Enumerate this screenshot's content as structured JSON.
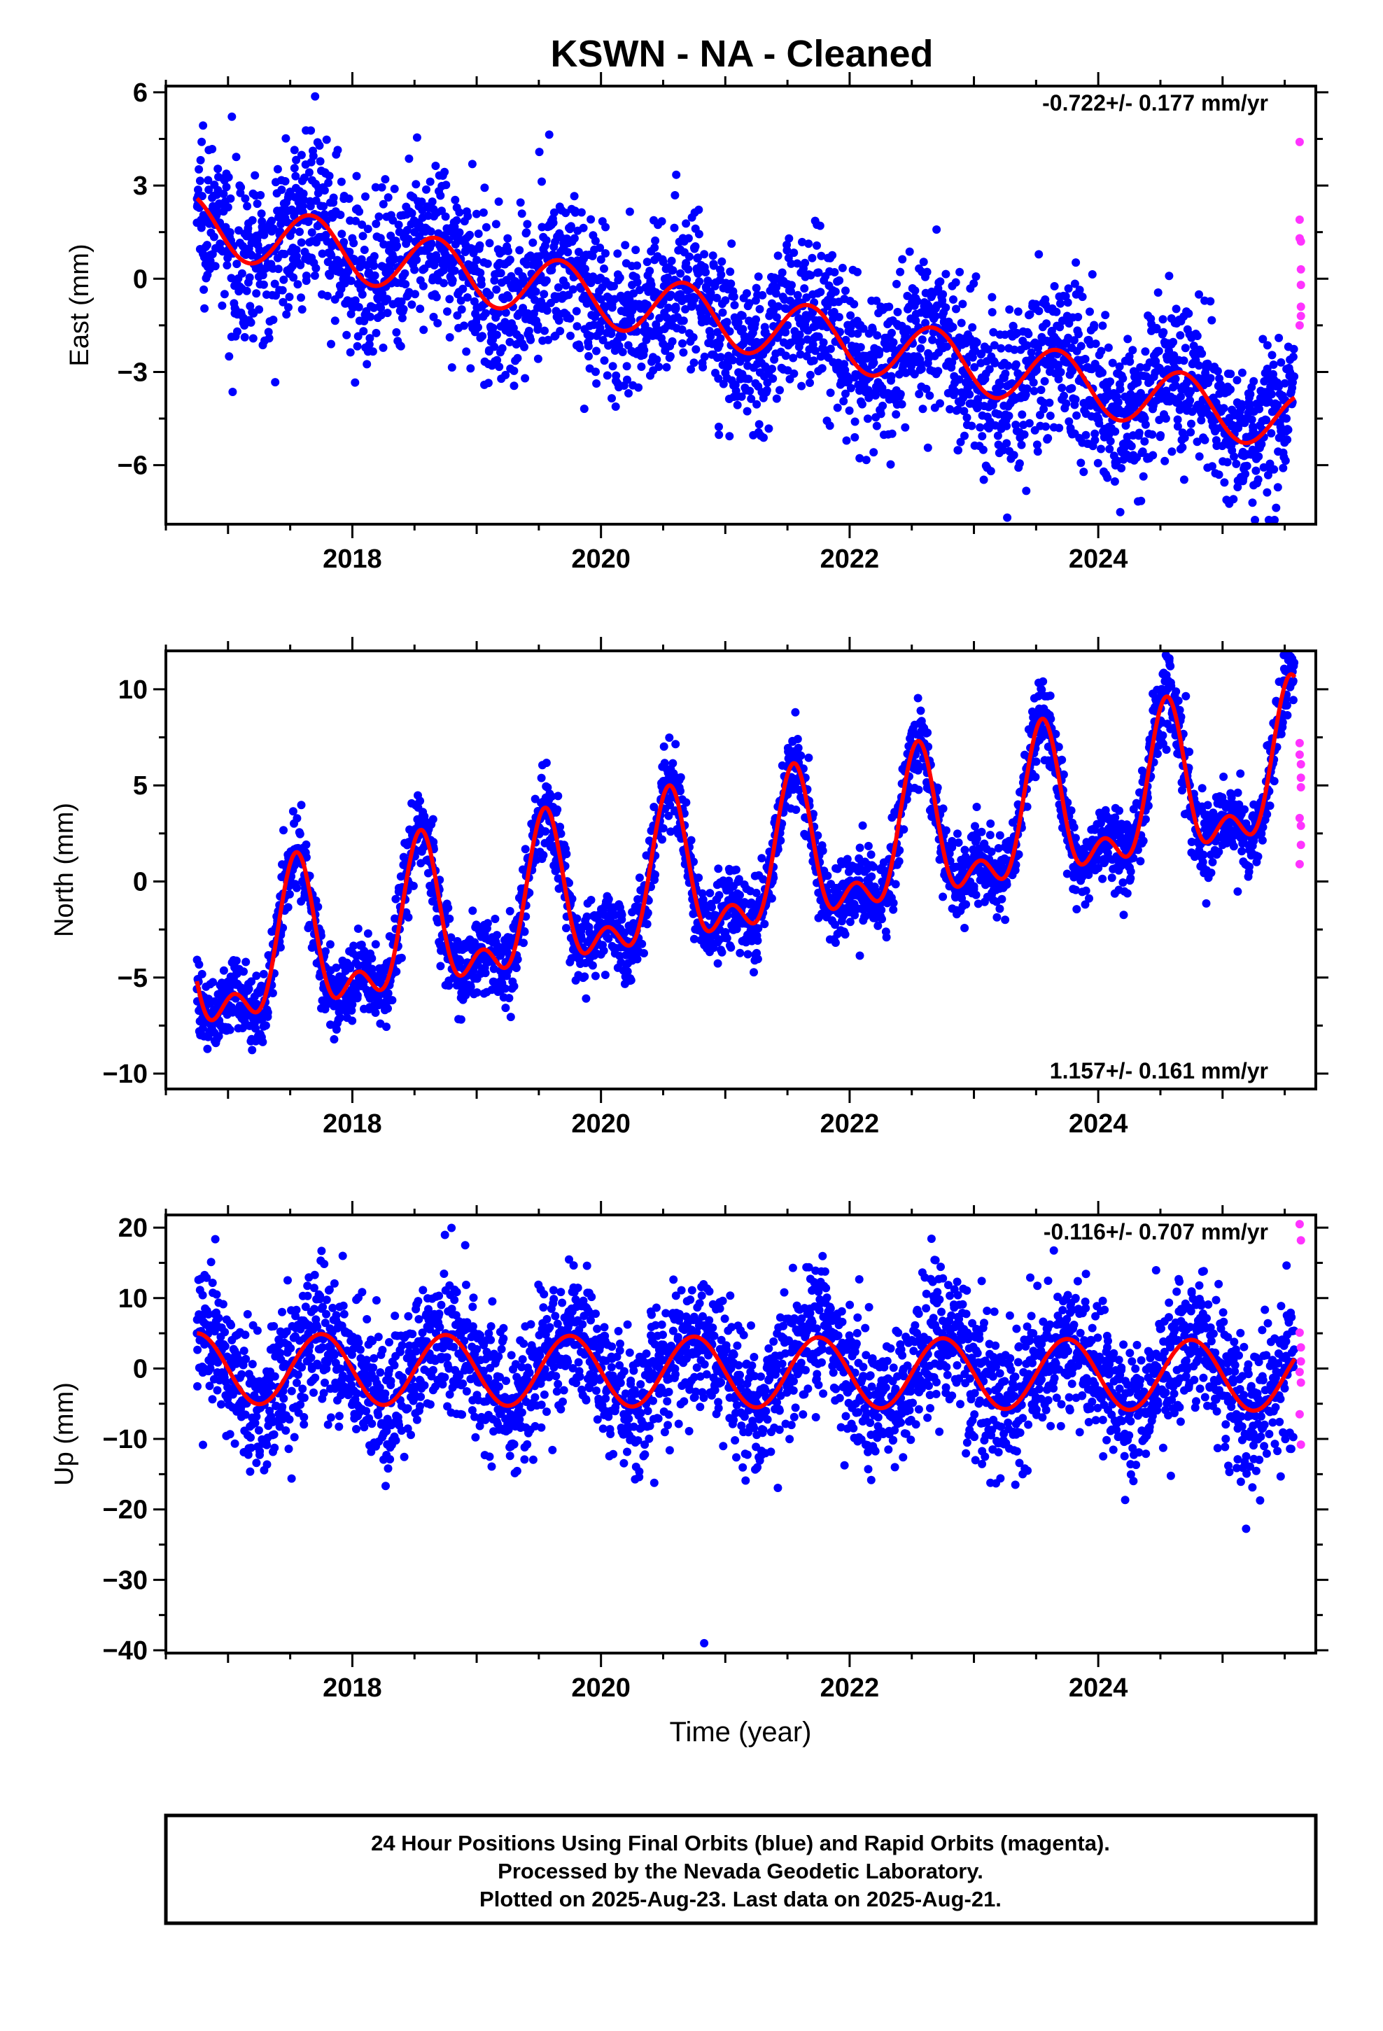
{
  "colors": {
    "final_points": "#0000ff",
    "rapid_points": "#ff33ff",
    "fit_line": "#ff0000",
    "frame": "#000000"
  },
  "figure": {
    "title": "KSWN  - NA - Cleaned",
    "xlabel": "Time (year)"
  },
  "footer": {
    "line1": "24 Hour Positions Using Final Orbits (blue) and Rapid Orbits (magenta).",
    "line2": "Processed by the Nevada Geodetic Laboratory.",
    "line3": "Plotted on 2025-Aug-23. Last data on 2025-Aug-21."
  },
  "chart_data": [
    {
      "type": "scatter",
      "component": "east",
      "ylabel": "East (mm)",
      "rate_label": "-0.722+/- 0.177 mm/yr",
      "rate_position": "top-right",
      "xlim": [
        2016.5,
        2025.75
      ],
      "ylim": [
        -7.9,
        6.2
      ],
      "xticks": [
        2018,
        2020,
        2022,
        2024
      ],
      "xtick_labels": [
        "2018",
        "2020",
        "2022",
        "2024"
      ],
      "yticks": [
        -6,
        -3,
        0,
        3,
        6
      ],
      "ytick_labels": [
        "-6",
        "-3",
        "0",
        "3",
        "6"
      ],
      "data_start": 2016.75,
      "data_end": 2025.58,
      "final_orbit_series": {
        "name": "Final Orbits (blue)",
        "x": [
          2016.75,
          2017.0,
          2017.25,
          2017.5,
          2017.75,
          2018.0,
          2018.25,
          2018.5,
          2018.75,
          2019.0,
          2019.25,
          2019.5,
          2019.75,
          2020.0,
          2020.25,
          2020.5,
          2020.75,
          2021.0,
          2021.25,
          2021.5,
          2021.75,
          2022.0,
          2022.25,
          2022.5,
          2022.75,
          2023.0,
          2023.25,
          2023.5,
          2023.75,
          2024.0,
          2024.25,
          2024.5,
          2024.75,
          2025.0,
          2025.25,
          2025.5
        ],
        "y": [
          1.8,
          2.3,
          1.4,
          2.8,
          2.0,
          1.3,
          2.4,
          1.5,
          2.0,
          0.6,
          0.9,
          0.3,
          1.6,
          0.0,
          -0.2,
          -0.6,
          1.0,
          -0.7,
          -0.3,
          -1.5,
          0.2,
          -1.5,
          -0.9,
          -2.0,
          -0.5,
          -2.2,
          -1.8,
          -2.8,
          -1.2,
          -2.9,
          -2.5,
          -3.6,
          -1.9,
          -3.5,
          -3.3,
          -4.2
        ],
        "scatter_mm": 1.3
      },
      "rapid_orbit_series": {
        "name": "Rapid Orbits (magenta)",
        "x": [
          2025.62,
          2025.62,
          2025.62,
          2025.63,
          2025.63,
          2025.63,
          2025.63,
          2025.63,
          2025.62
        ],
        "y": [
          4.4,
          1.9,
          1.3,
          1.2,
          0.3,
          -0.2,
          -0.9,
          -1.2,
          -1.5
        ]
      },
      "model_fit": {
        "name": "model",
        "offset_mm_at_2016_75": 1.75,
        "rate_mm_per_yr": -0.722,
        "annual_amplitude_mm": 0.95,
        "annual_peak_phase_yr": 0.67
      }
    },
    {
      "type": "scatter",
      "component": "north",
      "ylabel": "North (mm)",
      "rate_label": "1.157+/- 0.161 mm/yr",
      "rate_position": "bottom-right",
      "xlim": [
        2016.5,
        2025.75
      ],
      "ylim": [
        -10.8,
        12.0
      ],
      "xticks": [
        2018,
        2020,
        2022,
        2024
      ],
      "xtick_labels": [
        "2018",
        "2020",
        "2022",
        "2024"
      ],
      "yticks": [
        -10,
        -5,
        0,
        5,
        10
      ],
      "ytick_labels": [
        "-10",
        "-5",
        "0",
        "5",
        "10"
      ],
      "data_start": 2016.75,
      "data_end": 2025.58,
      "final_orbit_series": {
        "name": "Final Orbits (blue)",
        "x": [
          2016.75,
          2017.0,
          2017.25,
          2017.5,
          2017.75,
          2018.0,
          2018.25,
          2018.5,
          2018.75,
          2019.0,
          2019.25,
          2019.5,
          2019.75,
          2020.0,
          2020.25,
          2020.5,
          2020.75,
          2021.0,
          2021.25,
          2021.5,
          2021.75,
          2022.0,
          2022.25,
          2022.5,
          2022.75,
          2023.0,
          2023.25,
          2023.5,
          2023.75,
          2024.0,
          2024.25,
          2024.5,
          2024.75,
          2025.0,
          2025.25,
          2025.5
        ],
        "y": [
          -5.6,
          -7.6,
          -5.8,
          0.1,
          -6.6,
          -6.4,
          -4.5,
          1.4,
          -5.4,
          -5.0,
          -2.9,
          2.6,
          -4.2,
          -3.8,
          -1.6,
          3.8,
          -3.0,
          -2.8,
          -0.6,
          4.9,
          -1.9,
          -1.6,
          0.6,
          6.1,
          -0.8,
          -0.4,
          1.8,
          7.2,
          0.4,
          0.7,
          2.8,
          8.3,
          1.5,
          1.9,
          4.0,
          9.4
        ],
        "scatter_mm": 1.0
      },
      "rapid_orbit_series": {
        "name": "Rapid Orbits (magenta)",
        "x": [
          2025.62,
          2025.62,
          2025.63,
          2025.63,
          2025.63,
          2025.62,
          2025.63,
          2025.63,
          2025.62
        ],
        "y": [
          7.2,
          6.6,
          6.1,
          5.4,
          4.9,
          3.3,
          2.9,
          1.9,
          0.9
        ]
      },
      "model_fit": {
        "name": "model",
        "offset_mm_at_2016_75": -4.7,
        "rate_mm_per_yr": 1.157,
        "annual_amplitude_mm": 3.4,
        "annual_peak_phase_yr": 0.55,
        "semiannual_amplitude_mm": 1.9,
        "semiannual_peak_phase_yr": 0.05
      }
    },
    {
      "type": "scatter",
      "component": "up",
      "ylabel": "Up (mm)",
      "rate_label": "-0.116+/- 0.707 mm/yr",
      "rate_position": "top-right",
      "xlim": [
        2016.5,
        2025.75
      ],
      "ylim": [
        -40.4,
        21.8
      ],
      "xticks": [
        2018,
        2020,
        2022,
        2024
      ],
      "xtick_labels": [
        "2018",
        "2020",
        "2022",
        "2024"
      ],
      "yticks": [
        -40,
        -30,
        -20,
        -10,
        0,
        10,
        20
      ],
      "ytick_labels": [
        "-40",
        "-30",
        "-20",
        "-10",
        "0",
        "10",
        "20"
      ],
      "data_start": 2016.75,
      "data_end": 2025.58,
      "final_orbit_series": {
        "name": "Final Orbits (blue)",
        "x": [
          2016.75,
          2017.0,
          2017.25,
          2017.5,
          2017.75,
          2018.0,
          2018.25,
          2018.5,
          2018.75,
          2019.0,
          2019.25,
          2019.5,
          2019.75,
          2020.0,
          2020.25,
          2020.5,
          2020.75,
          2021.0,
          2021.25,
          2021.5,
          2021.75,
          2022.0,
          2022.25,
          2022.5,
          2022.75,
          2023.0,
          2023.25,
          2023.5,
          2023.75,
          2024.0,
          2024.25,
          2024.5,
          2024.75,
          2025.0,
          2025.25,
          2025.5,
          2020.83
        ],
        "y": [
          5.0,
          0.2,
          -4.6,
          -0.3,
          5.0,
          0.1,
          -4.6,
          -0.2,
          5.0,
          0.2,
          -4.7,
          -0.3,
          4.8,
          0.0,
          -4.8,
          -0.3,
          4.8,
          0.0,
          -4.9,
          -0.4,
          4.6,
          -0.1,
          -5.0,
          -0.5,
          4.6,
          -0.2,
          -5.1,
          -0.6,
          4.5,
          -0.3,
          -5.2,
          -0.6,
          4.4,
          -0.3,
          -5.3,
          0.1,
          -39.0
        ],
        "scatter_mm": 5.0
      },
      "rapid_orbit_series": {
        "name": "Rapid Orbits (magenta)",
        "x": [
          2025.62,
          2025.63,
          2025.62,
          2025.63,
          2025.63,
          2025.62,
          2025.63,
          2025.62,
          2025.63
        ],
        "y": [
          20.5,
          18.2,
          5.1,
          3.0,
          1.0,
          -0.5,
          -2.0,
          -6.5,
          -10.8
        ]
      },
      "model_fit": {
        "name": "model",
        "offset_mm_at_2016_75": 0.0,
        "rate_mm_per_yr": -0.116,
        "annual_amplitude_mm": 5.0,
        "annual_peak_phase_yr": 0.75
      }
    }
  ]
}
